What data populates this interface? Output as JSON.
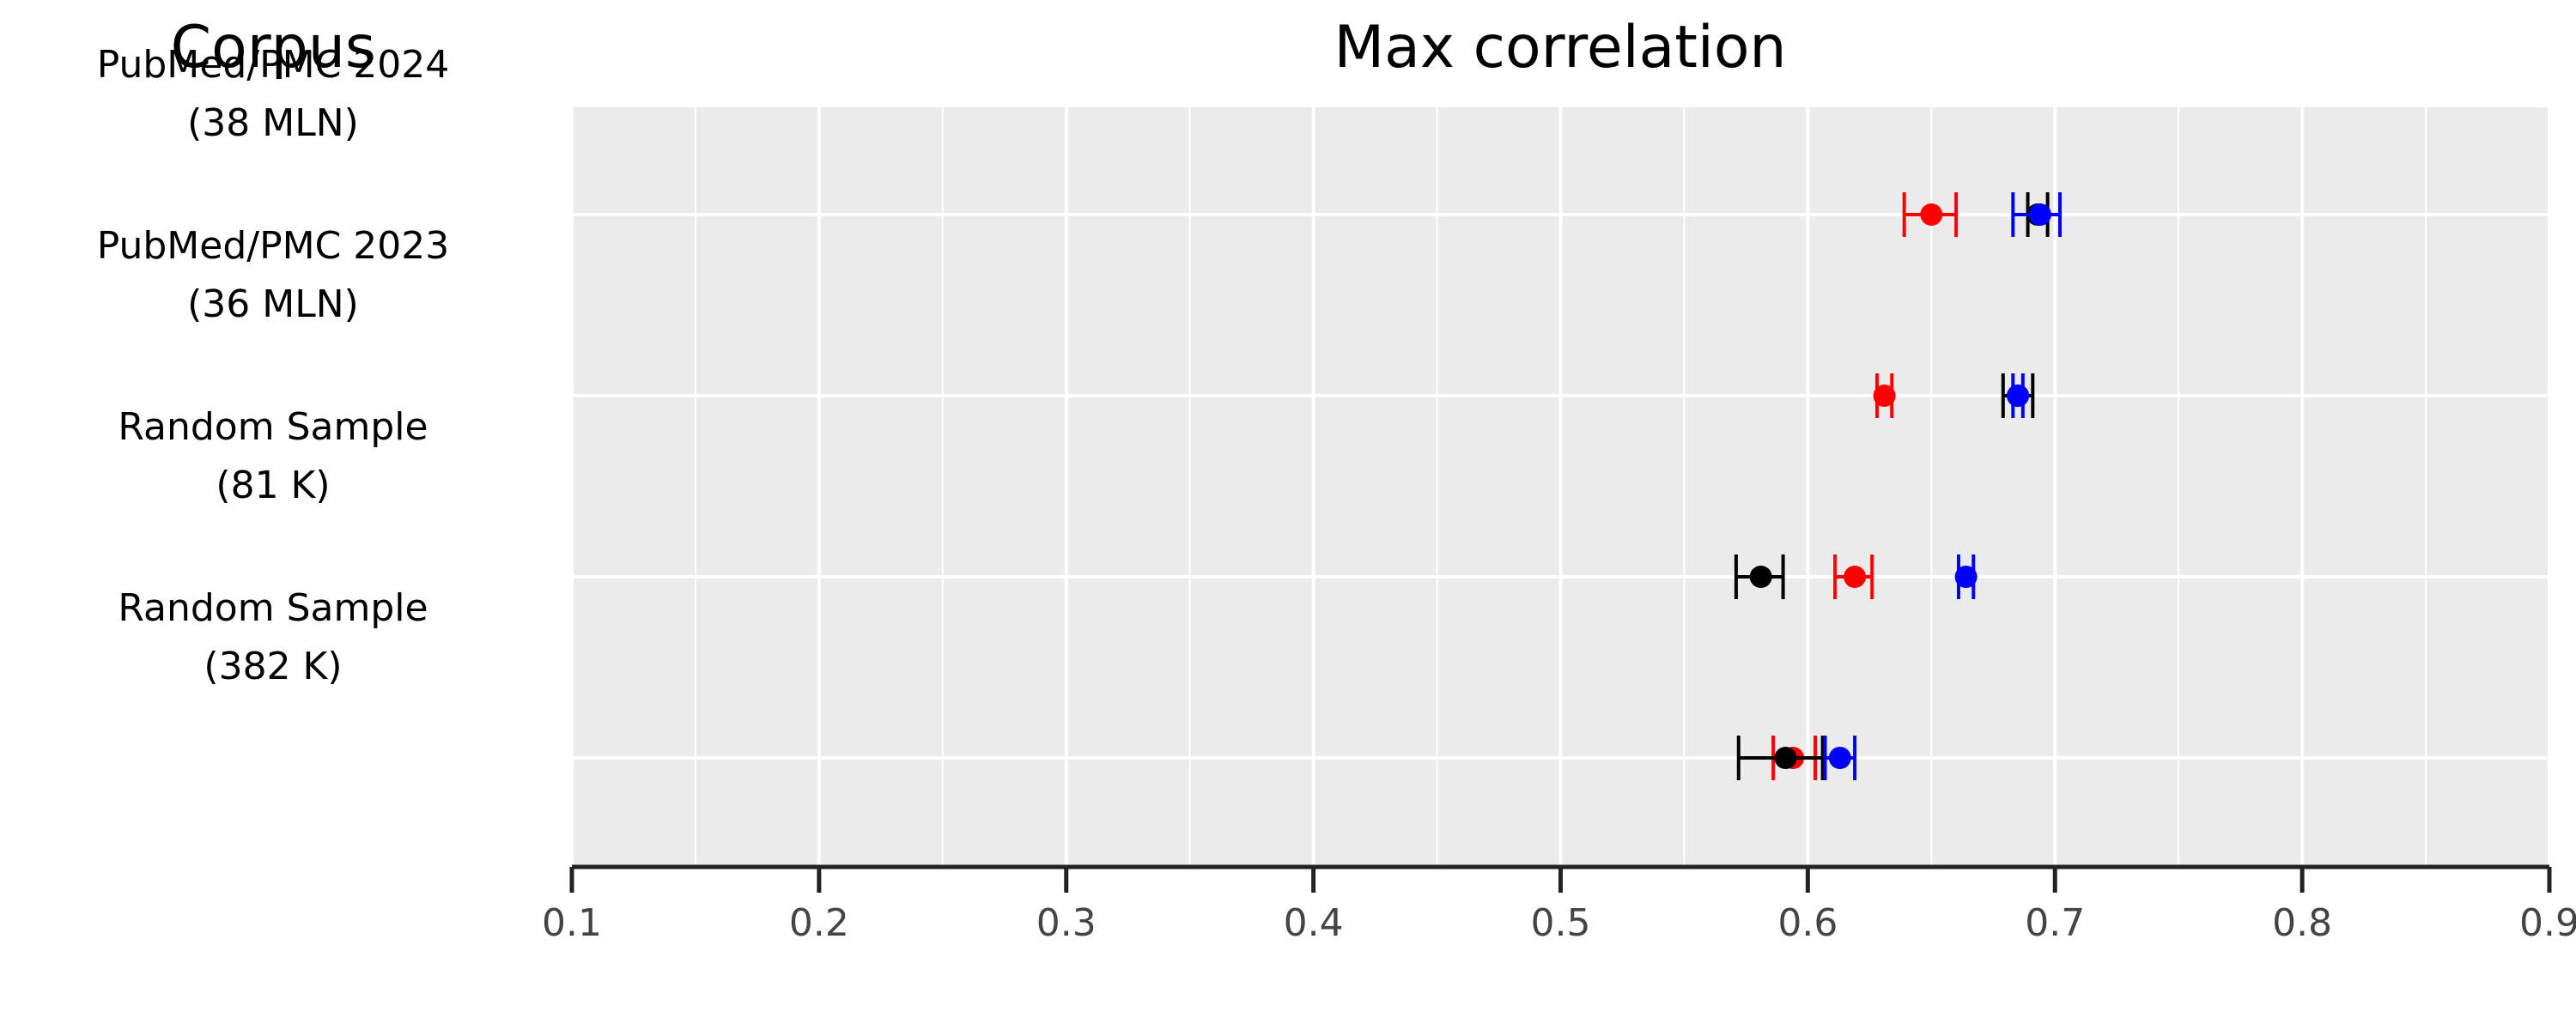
{
  "chart_data": {
    "type": "scatter",
    "title": "Max correlation",
    "row_header": "Corpus",
    "xlim": [
      0.1,
      0.9
    ],
    "x_ticks": [
      "0.1",
      "0.2",
      "0.3",
      "0.4",
      "0.5",
      "0.6",
      "0.7",
      "0.8",
      "0.9"
    ],
    "grid": true,
    "categories": [
      [
        "PubMed/PMC 2024",
        "(38 MLN)"
      ],
      [
        "PubMed/PMC 2023",
        "(36 MLN)"
      ],
      [
        "Random Sample",
        "(81 K)"
      ],
      [
        "Random Sample",
        "(382 K)"
      ]
    ],
    "series": [
      {
        "color": "#ff0000",
        "points": [
          {
            "value": 0.65,
            "low": 0.639,
            "high": 0.66
          },
          {
            "value": 0.631,
            "low": 0.628,
            "high": 0.634
          },
          {
            "value": 0.619,
            "low": 0.611,
            "high": 0.626
          },
          {
            "value": 0.594,
            "low": 0.586,
            "high": 0.603
          }
        ]
      },
      {
        "color": "#000000",
        "points": [
          {
            "value": 0.693,
            "low": 0.689,
            "high": 0.697
          },
          {
            "value": 0.685,
            "low": 0.679,
            "high": 0.691
          },
          {
            "value": 0.581,
            "low": 0.571,
            "high": 0.59
          },
          {
            "value": 0.591,
            "low": 0.572,
            "high": 0.606
          }
        ]
      },
      {
        "color": "#0000ff",
        "points": [
          {
            "value": 0.694,
            "low": 0.683,
            "high": 0.702
          },
          {
            "value": 0.685,
            "low": 0.683,
            "high": 0.687
          },
          {
            "value": 0.664,
            "low": 0.661,
            "high": 0.667
          },
          {
            "value": 0.613,
            "low": 0.607,
            "high": 0.619
          }
        ]
      }
    ]
  }
}
